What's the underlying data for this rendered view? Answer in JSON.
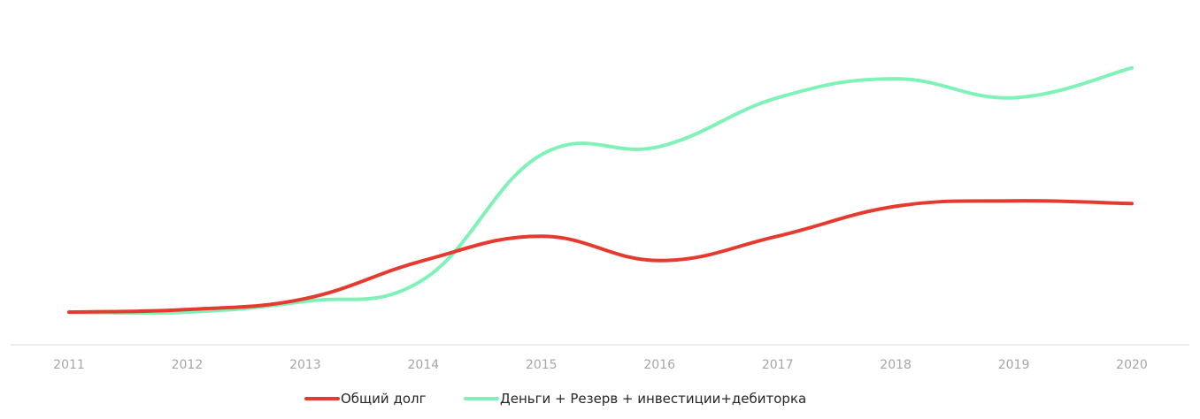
{
  "chart_data": {
    "type": "line",
    "categories": [
      "2011",
      "2012",
      "2013",
      "2014",
      "2015",
      "2016",
      "2017",
      "2018",
      "2019",
      "2020"
    ],
    "series": [
      {
        "name": "Общий долг",
        "color": "#e53a2f",
        "values": [
          0,
          1,
          5,
          19,
          28,
          19,
          28,
          39,
          41,
          40
        ]
      },
      {
        "name": "Деньги + Резерв + инвестиции+дебиторка",
        "color": "#7ff3b7",
        "values": [
          0,
          0,
          4,
          12,
          58,
          61,
          79,
          86,
          79,
          90
        ]
      }
    ],
    "title": "",
    "xlabel": "",
    "ylabel": "",
    "ylim": [
      -12,
      115
    ],
    "y_axis_visible": false,
    "grid": false,
    "smooth": true,
    "axis_color": "#d9d9d9",
    "legend_position": "bottom-center"
  }
}
